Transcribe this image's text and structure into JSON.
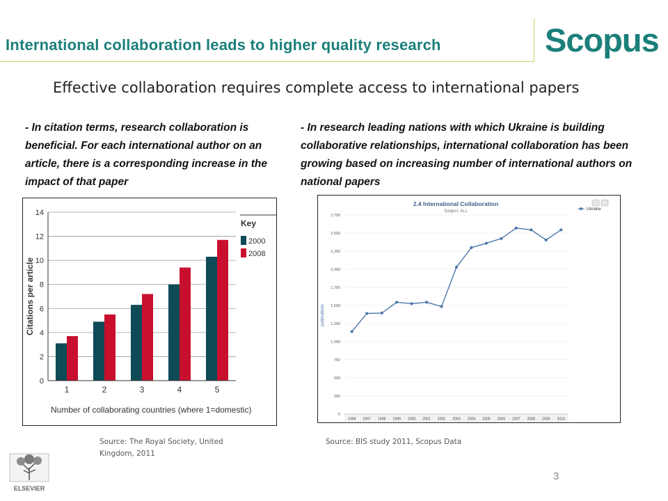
{
  "header": {
    "title": "International collaboration leads to higher quality research",
    "logo": "Scopus",
    "colors": {
      "accent": "#1b7f7a",
      "rule": "#c9d86a"
    }
  },
  "subtitle": "Effective collaboration requires complete access to international papers",
  "notes": {
    "left": "- In citation terms, research collaboration is beneficial. For each international author on an article, there is a corresponding increase in the impact of that paper",
    "right": "- In research leading nations with which Ukraine is building collaborative relationships, international collaboration has been growing based on increasing number of international authors on national papers"
  },
  "sources": {
    "left": "Source: The Royal Society, United Kingdom, 2011",
    "right": "Source: BIS study 2011, Scopus Data"
  },
  "footer": {
    "page_number": "3",
    "publisher_logo": "ELSEVIER"
  },
  "chart_data": [
    {
      "type": "bar",
      "title": "",
      "xlabel": "Number of collaborating countries (where 1=domestic)",
      "ylabel": "Citations per article",
      "categories": [
        "1",
        "2",
        "3",
        "4",
        "5"
      ],
      "series": [
        {
          "name": "2000",
          "color": "#0f4a57",
          "values": [
            3.1,
            4.9,
            6.3,
            8.0,
            10.3
          ]
        },
        {
          "name": "2008",
          "color": "#c8102e",
          "values": [
            3.7,
            5.5,
            7.2,
            9.4,
            11.7
          ]
        }
      ],
      "ylim": [
        0,
        14
      ],
      "yticks": [
        "0",
        "2",
        "4",
        "6",
        "8",
        "10",
        "12",
        "14"
      ],
      "legend_title": "Key",
      "legend_position": "right"
    },
    {
      "type": "line",
      "title": "2.4 International Collaboration",
      "subtitle": "Subject: ALL",
      "ylabel": "publications",
      "xlabel": "",
      "categories": [
        "1996",
        "1997",
        "1998",
        "1999",
        "2000",
        "2001",
        "2002",
        "2003",
        "2004",
        "2005",
        "2006",
        "2007",
        "2008",
        "2009",
        "2010"
      ],
      "series": [
        {
          "name": "Ukraine",
          "color": "#4a76a8",
          "values": [
            1140,
            1390,
            1395,
            1545,
            1525,
            1545,
            1485,
            2030,
            2300,
            2360,
            2425,
            2570,
            2545,
            2405,
            2545
          ]
        }
      ],
      "ylim": [
        0,
        2750
      ],
      "yticks": [
        "0",
        "250",
        "500",
        "750",
        "1,000",
        "1,250",
        "1,500",
        "1,750",
        "2,000",
        "2,250",
        "2,500",
        "2,750"
      ],
      "legend_position": "top-right"
    }
  ]
}
